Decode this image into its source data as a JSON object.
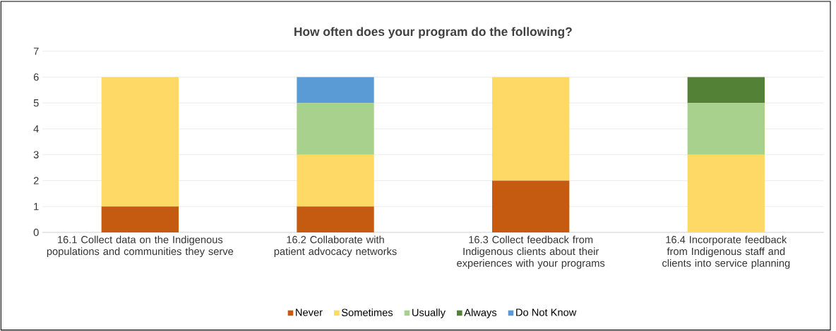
{
  "chart_data": {
    "type": "bar",
    "title": "How often does your program do the following?",
    "categories": [
      "16.1 Collect data on the Indigenous populations and communities they serve",
      "16.2 Collaborate with patient advocacy networks",
      "16.3 Collect feedback from Indigenous clients about their experiences with your programs",
      "16.4 Incorporate feedback from Indigenous staff and clients into service planning"
    ],
    "series": [
      {
        "name": "Never",
        "color": "#c55a11",
        "values": [
          1,
          1,
          2,
          0
        ]
      },
      {
        "name": "Sometimes",
        "color": "#ffd966",
        "values": [
          5,
          2,
          4,
          3
        ]
      },
      {
        "name": "Usually",
        "color": "#a9d18e",
        "values": [
          0,
          2,
          0,
          2
        ]
      },
      {
        "name": "Always",
        "color": "#538135",
        "values": [
          0,
          0,
          0,
          1
        ]
      },
      {
        "name": "Do Not Know",
        "color": "#5b9bd5",
        "values": [
          0,
          1,
          0,
          0
        ]
      }
    ],
    "stacked": true,
    "ylim": [
      0,
      7
    ],
    "yticks": [
      0,
      1,
      2,
      3,
      4,
      5,
      6,
      7
    ],
    "grid": "y",
    "legend": "bottom"
  }
}
